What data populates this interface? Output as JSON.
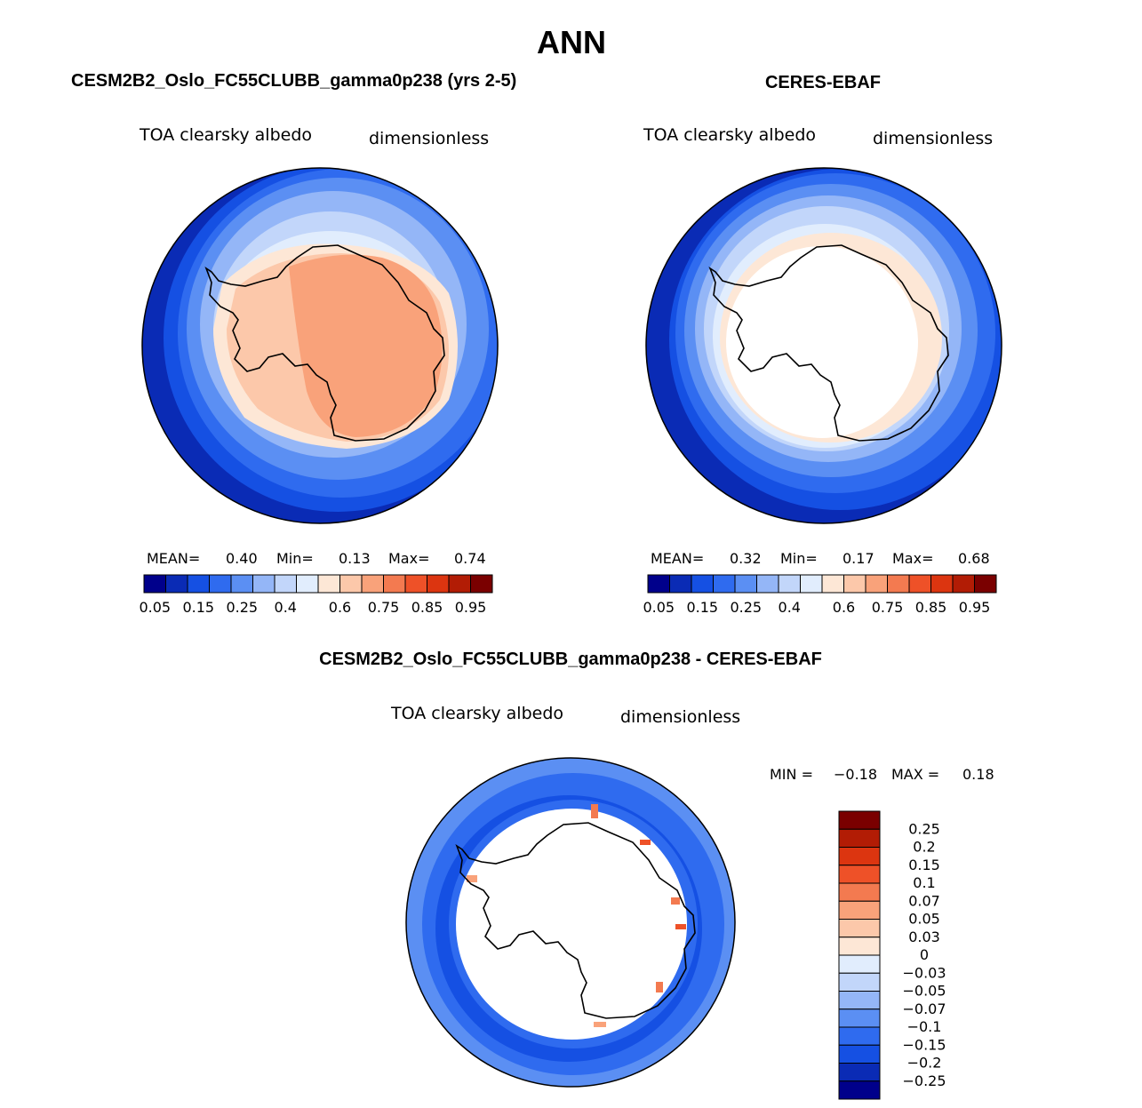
{
  "page_title": "ANN",
  "colors": {
    "palette13": [
      "#00008b",
      "#0a2bb5",
      "#1550e3",
      "#2f6bef",
      "#5b8ff3",
      "#94b6f7",
      "#c2d6fa",
      "#e1edfd",
      "#fde7d6",
      "#fcc8aa",
      "#f9a27a",
      "#f37a50",
      "#ee5128",
      "#dc3510",
      "#b21c05",
      "#7a0000"
    ],
    "main_fill": [
      "#00008b",
      "#0a2bb5",
      "#1550e3",
      "#2f6bef",
      "#5b8ff3",
      "#94b6f7",
      "#c2d6fa",
      "#e1edfd",
      "#fde7d6",
      "#fcc8aa",
      "#f9a27a",
      "#f37a50",
      "#ee5128",
      "#dc3510",
      "#b21c05",
      "#7a0000"
    ],
    "diff_fill": [
      "#00008b",
      "#0a2bb5",
      "#1550e3",
      "#2f6bef",
      "#5b8ff3",
      "#94b6f7",
      "#c2d6fa",
      "#e1edfd",
      "#fde7d6",
      "#fcc8aa",
      "#f9a27a",
      "#f37a50",
      "#ee5128",
      "#dc3510",
      "#b21c05",
      "#7a0000"
    ]
  },
  "chart_data": [
    {
      "type": "heatmap",
      "panel": "model",
      "title": "CESM2B2_Oslo_FC55CLUBB_gamma0p238 (yrs 2-5)",
      "variable": "TOA clearsky albedo",
      "units": "dimensionless",
      "stats": {
        "mean_label": "MEAN=",
        "mean": "0.40",
        "min_label": "Min=",
        "min": "0.13",
        "max_label": "Max=",
        "max": "0.74"
      },
      "levels": [
        "0.05",
        "0.15",
        "0.25",
        "0.4",
        "0.6",
        "0.75",
        "0.85",
        "0.95"
      ],
      "colorbar_segments": 16
    },
    {
      "type": "heatmap",
      "panel": "obs",
      "title": "CERES-EBAF",
      "variable": "TOA clearsky albedo",
      "units": "dimensionless",
      "stats": {
        "mean_label": "MEAN=",
        "mean": "0.32",
        "min_label": "Min=",
        "min": "0.17",
        "max_label": "Max=",
        "max": "0.68"
      },
      "levels": [
        "0.05",
        "0.15",
        "0.25",
        "0.4",
        "0.6",
        "0.75",
        "0.85",
        "0.95"
      ],
      "colorbar_segments": 16
    },
    {
      "type": "heatmap",
      "panel": "difference",
      "title": "CESM2B2_Oslo_FC55CLUBB_gamma0p238 - CERES-EBAF",
      "variable": "TOA clearsky albedo",
      "units": "dimensionless",
      "stats": {
        "min_label": "MIN =",
        "min": "−0.18",
        "max_label": "MAX =",
        "max": "0.18"
      },
      "levels": [
        "0.25",
        "0.2",
        "0.15",
        "0.1",
        "0.07",
        "0.05",
        "0.03",
        "0",
        "−0.03",
        "−0.05",
        "−0.07",
        "−0.1",
        "−0.15",
        "−0.2",
        "−0.25"
      ],
      "colorbar_segments": 16
    }
  ]
}
